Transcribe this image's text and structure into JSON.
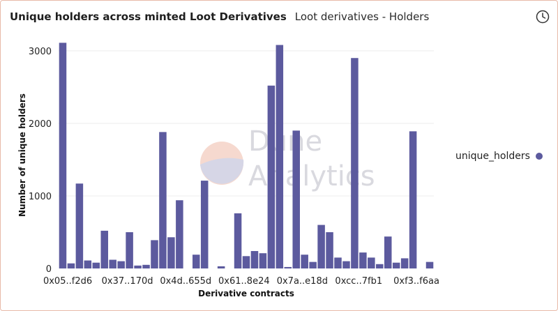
{
  "header": {
    "title": "Unique holders across minted Loot Derivatives",
    "subtitle": "Loot derivatives - Holders"
  },
  "watermark": {
    "line1": "Dune",
    "line2": "Analytics"
  },
  "legend": {
    "label": "unique_holders",
    "color": "#5c5a9e"
  },
  "chart_data": {
    "type": "bar",
    "title": "Unique holders across minted Loot Derivatives",
    "xlabel": "Derivative contracts",
    "ylabel": "Number of unique holders",
    "ylim": [
      0,
      3200
    ],
    "yticks": [
      0,
      1000,
      2000,
      3000
    ],
    "grid": true,
    "legend_position": "right",
    "bar_color": "#5c5a9e",
    "x_tick_labels": [
      "0x05..f2d6",
      "0x37..170d",
      "0x4d..655d",
      "0x61..8e24",
      "0x7a..e18d",
      "0xcc..7fb1",
      "0xf3..f6aa"
    ],
    "x_tick_indices": [
      0,
      7,
      14,
      21,
      28,
      35,
      42
    ],
    "series": [
      {
        "name": "unique_holders",
        "values": [
          3110,
          70,
          1170,
          110,
          80,
          520,
          120,
          100,
          500,
          40,
          50,
          390,
          1880,
          430,
          940,
          0,
          190,
          1210,
          0,
          30,
          0,
          760,
          170,
          240,
          210,
          2520,
          3080,
          20,
          1900,
          190,
          90,
          600,
          500,
          150,
          100,
          2900,
          220,
          150,
          60,
          440,
          80,
          140,
          1890,
          0,
          90
        ]
      }
    ]
  }
}
